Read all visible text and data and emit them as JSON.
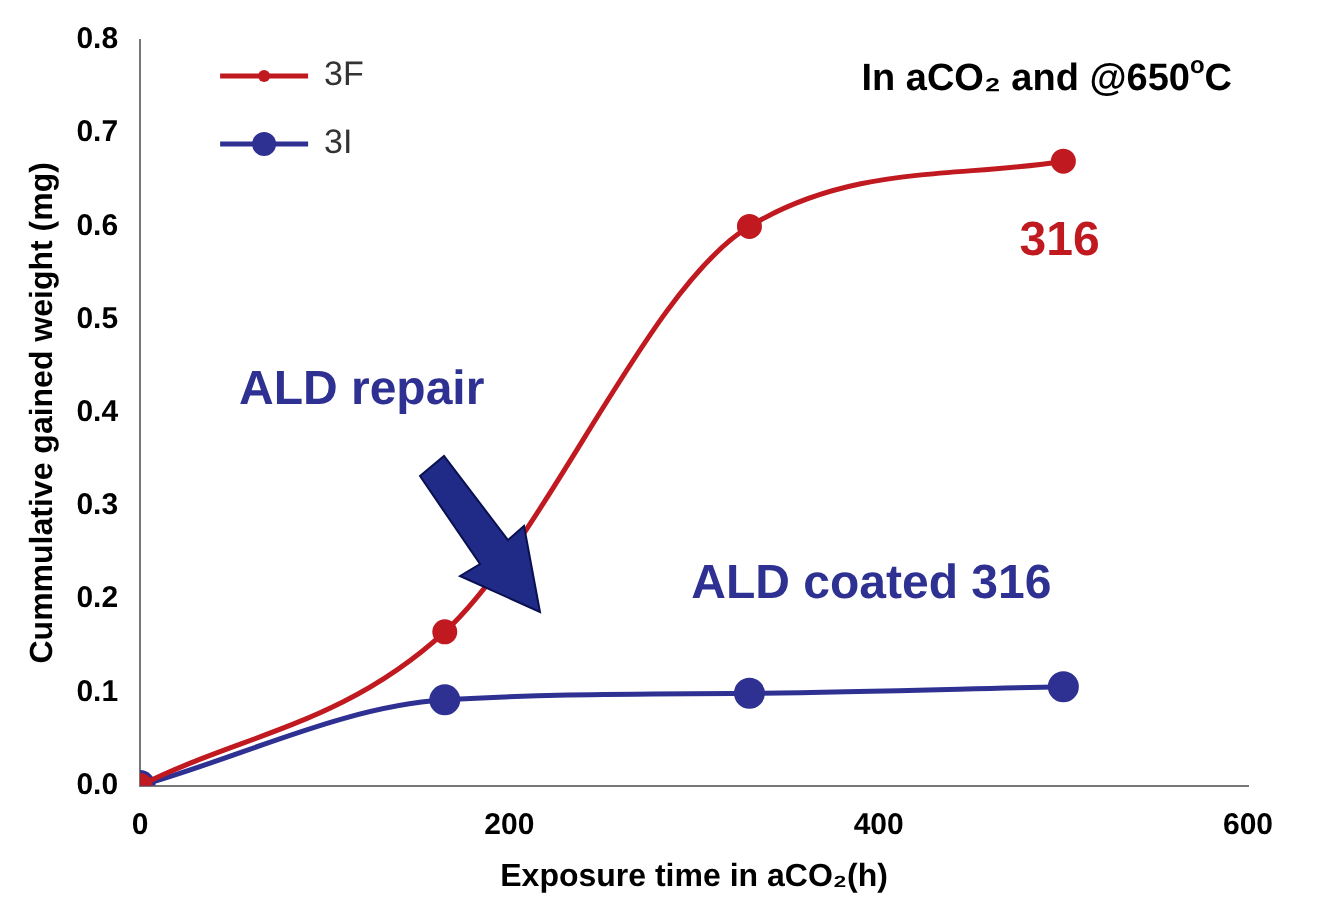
{
  "chart_data": {
    "type": "line",
    "xlabel": "Exposure time in aCO₂(h)",
    "ylabel": "Cummulative gained weight (mg)",
    "xlim": [
      0,
      600
    ],
    "xticks": [
      0,
      200,
      400,
      600
    ],
    "ylim": [
      0,
      0.8
    ],
    "yticks": [
      {
        "value": 0,
        "label": "0.0"
      },
      {
        "value": 0.1,
        "label": "0.1"
      },
      {
        "value": 0.2,
        "label": "0.2"
      },
      {
        "value": 0.3,
        "label": "0.3"
      },
      {
        "value": 0.4,
        "label": "0.4"
      },
      {
        "value": 0.5,
        "label": "0.5"
      },
      {
        "value": 0.6,
        "label": "0.6"
      },
      {
        "value": 0.7,
        "label": "0.7"
      },
      {
        "value": 0.8,
        "label": "0.8"
      }
    ],
    "grid": false,
    "legend": "top left",
    "marker": "circle",
    "line_style": "solid",
    "series": [
      {
        "name": "3F",
        "color": "#c0191f",
        "x": [
          0,
          165,
          330,
          500
        ],
        "values": [
          0,
          0.165,
          0.6,
          0.67
        ]
      },
      {
        "name": "3I",
        "color": "#2e3192",
        "x": [
          0,
          165,
          330,
          500
        ],
        "values": [
          0,
          0.092,
          0.099,
          0.106
        ]
      }
    ],
    "annotations": [
      "In aCO₂ and @650$^{o}$C",
      "316",
      "ALD repair",
      "ALD coated 316"
    ]
  }
}
